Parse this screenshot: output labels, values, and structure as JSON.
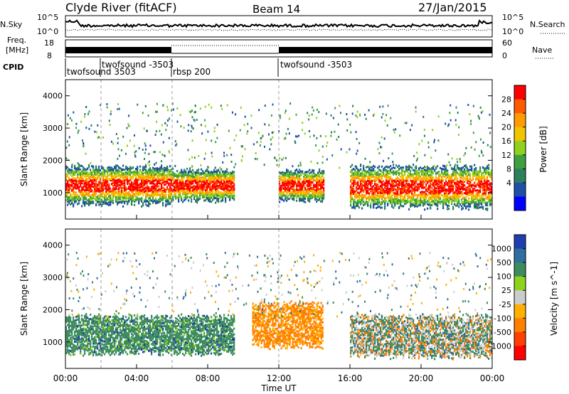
{
  "header": {
    "station": "Clyde River (fitACF)",
    "beam": "Beam 14",
    "date": "27/Jan/2015"
  },
  "left_labels": {
    "nsky": "N.Sky",
    "freq_line1": "Freq.",
    "freq_line2": "[MHz]",
    "cpid": "CPID"
  },
  "right_labels": {
    "nsearch": "N.Search",
    "nave": "Nave"
  },
  "noise_panel": {
    "left_ticks": [
      "10^5",
      "10^0"
    ],
    "right_ticks": [
      "10^5",
      "10^0"
    ]
  },
  "freq_panel": {
    "left_ticks": [
      "18",
      "8"
    ],
    "right_ticks": [
      "60",
      "0"
    ]
  },
  "cpid_segments": [
    {
      "label_upper": "",
      "label_lower": "twofsound 3503",
      "start_hour": 0,
      "end_hour": 2
    },
    {
      "label_upper": "twofsound -3503",
      "label_lower": "",
      "start_hour": 2,
      "end_hour": 6
    },
    {
      "label_upper": "",
      "label_lower": "rbsp 200",
      "start_hour": 6,
      "end_hour": 12
    },
    {
      "label_upper": "",
      "label_lower": "twofsound -3503",
      "start_hour": 12,
      "end_hour": 24
    }
  ],
  "chart_data": [
    {
      "type": "heatmap",
      "panel": "power",
      "ylabel": "Slant Range [km]",
      "xlabel": "",
      "x_range_hours": [
        0,
        24
      ],
      "ylim": [
        180,
        4500
      ],
      "yticks": [
        "1000",
        "2000",
        "3000",
        "4000"
      ],
      "colorbar": {
        "label": "Power [dB]",
        "ticks": [
          "28",
          "24",
          "20",
          "16",
          "12",
          "8",
          "4"
        ],
        "colors": [
          "#ff0000",
          "#ff5a00",
          "#ff9a00",
          "#f0c400",
          "#8ed21e",
          "#3fa03f",
          "#2d7f5e",
          "#1f4fa8",
          "#0000ff"
        ]
      },
      "scatter_bands": [
        {
          "hours": [
            0,
            6
          ],
          "range_km": [
            700,
            1800
          ],
          "level": "high"
        },
        {
          "hours": [
            6,
            9.5
          ],
          "range_km": [
            800,
            1700
          ],
          "level": "high"
        },
        {
          "hours": [
            12,
            14.5
          ],
          "range_km": [
            800,
            1700
          ],
          "level": "high"
        },
        {
          "hours": [
            16,
            24
          ],
          "range_km": [
            600,
            1800
          ],
          "level": "high"
        }
      ]
    },
    {
      "type": "heatmap",
      "panel": "velocity",
      "ylabel": "Slant Range [km]",
      "xlabel": "Time UT",
      "x_range_hours": [
        0,
        24
      ],
      "xticks": [
        "00:00",
        "04:00",
        "08:00",
        "12:00",
        "16:00",
        "20:00",
        "00:00"
      ],
      "ylim": [
        180,
        4500
      ],
      "yticks": [
        "1000",
        "2000",
        "3000",
        "4000"
      ],
      "colorbar": {
        "label": "Velocity [m s^-1]",
        "ticks": [
          "1000",
          "500",
          "100",
          "25",
          "-25",
          "-100",
          "-500",
          "-1000"
        ],
        "colors": [
          "#1f3fb0",
          "#2f6fa0",
          "#3d8c5e",
          "#8ed21e",
          "#cccccc",
          "#ffb000",
          "#ff8000",
          "#ff4000",
          "#ff0000"
        ]
      },
      "scatter_bands": [
        {
          "hours": [
            0,
            9.5
          ],
          "range_km": [
            700,
            1800
          ],
          "velocity": "100"
        },
        {
          "hours": [
            10.5,
            14.5
          ],
          "range_km": [
            900,
            2200
          ],
          "velocity": "-500"
        },
        {
          "hours": [
            16,
            24
          ],
          "range_km": [
            600,
            1800
          ],
          "velocity": "mixed"
        }
      ]
    }
  ]
}
